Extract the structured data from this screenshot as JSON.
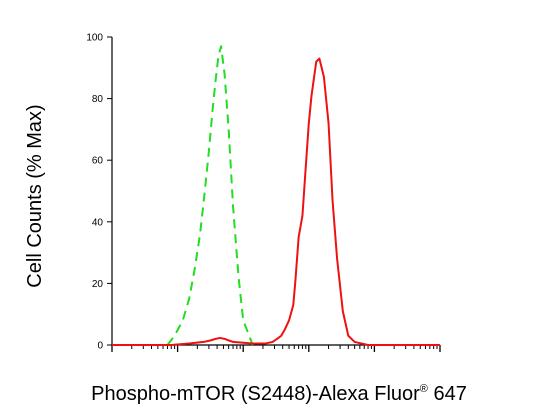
{
  "chart_data": {
    "type": "line",
    "xlabel": "Phospho-mTOR (S2448)-Alexa Fluor® 647",
    "xlabel_main": "Phospho-mTOR (S2448)-Alexa Fluor",
    "xlabel_sup": "®",
    "xlabel_tail": " 647",
    "ylabel": "Cell Counts (% Max)",
    "x_scale": "log",
    "xlim": [
      1,
      100000
    ],
    "ylim": [
      0,
      100
    ],
    "y_ticks": [
      0,
      20,
      40,
      60,
      80,
      100
    ],
    "y_tick_labels": [
      "0",
      "20",
      "40",
      "60",
      "80",
      "100"
    ],
    "grid": false,
    "series": [
      {
        "color": "#22dd22",
        "style": "dashed",
        "x": [
          7,
          9,
          12,
          15,
          18,
          22,
          26,
          30,
          34,
          38,
          42,
          46,
          52,
          60,
          70,
          85,
          100,
          140
        ],
        "y": [
          0,
          3,
          8,
          15,
          24,
          36,
          50,
          63,
          76,
          86,
          94,
          97,
          88,
          70,
          45,
          22,
          8,
          0
        ]
      },
      {
        "color": "#ee1111",
        "style": "solid",
        "x": [
          1,
          8,
          15,
          25,
          32,
          38,
          44,
          52,
          60,
          70,
          90,
          140,
          220,
          280,
          330,
          380,
          430,
          500,
          580,
          620,
          700,
          800,
          900,
          1000,
          1100,
          1300,
          1450,
          1700,
          2000,
          2300,
          2700,
          3300,
          4000,
          5000,
          8000,
          15000,
          100000
        ],
        "y": [
          0,
          0,
          0.5,
          1,
          1.5,
          2,
          2.3,
          2,
          1.5,
          1,
          0.8,
          0.5,
          0.5,
          1,
          2,
          3,
          5,
          8,
          13,
          20,
          35,
          42,
          58,
          72,
          81,
          92,
          93,
          87,
          72,
          47,
          28,
          11,
          3,
          1,
          0,
          0,
          0
        ]
      }
    ]
  }
}
